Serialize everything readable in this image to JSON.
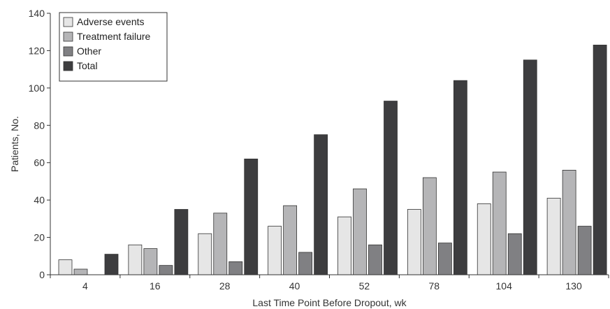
{
  "chart_data": {
    "type": "bar",
    "xlabel": "Last Time Point Before Dropout, wk",
    "ylabel": "Patients, No.",
    "ylim": [
      0,
      140
    ],
    "yticks": [
      0,
      20,
      40,
      60,
      80,
      100,
      120,
      140
    ],
    "categories": [
      "4",
      "16",
      "28",
      "40",
      "52",
      "78",
      "104",
      "130"
    ],
    "series": [
      {
        "name": "Adverse events",
        "color": "#e6e6e6",
        "values": [
          8,
          16,
          22,
          26,
          31,
          35,
          38,
          41
        ]
      },
      {
        "name": "Treatment failure",
        "color": "#b5b5b7",
        "values": [
          3,
          14,
          33,
          37,
          46,
          52,
          55,
          56
        ]
      },
      {
        "name": "Other",
        "color": "#808083",
        "values": [
          0,
          5,
          7,
          12,
          16,
          17,
          22,
          26
        ]
      },
      {
        "name": "Total",
        "color": "#3d3d3f",
        "values": [
          11,
          35,
          62,
          75,
          93,
          104,
          115,
          123
        ]
      }
    ],
    "legend_position": "top-left",
    "grid": false
  }
}
